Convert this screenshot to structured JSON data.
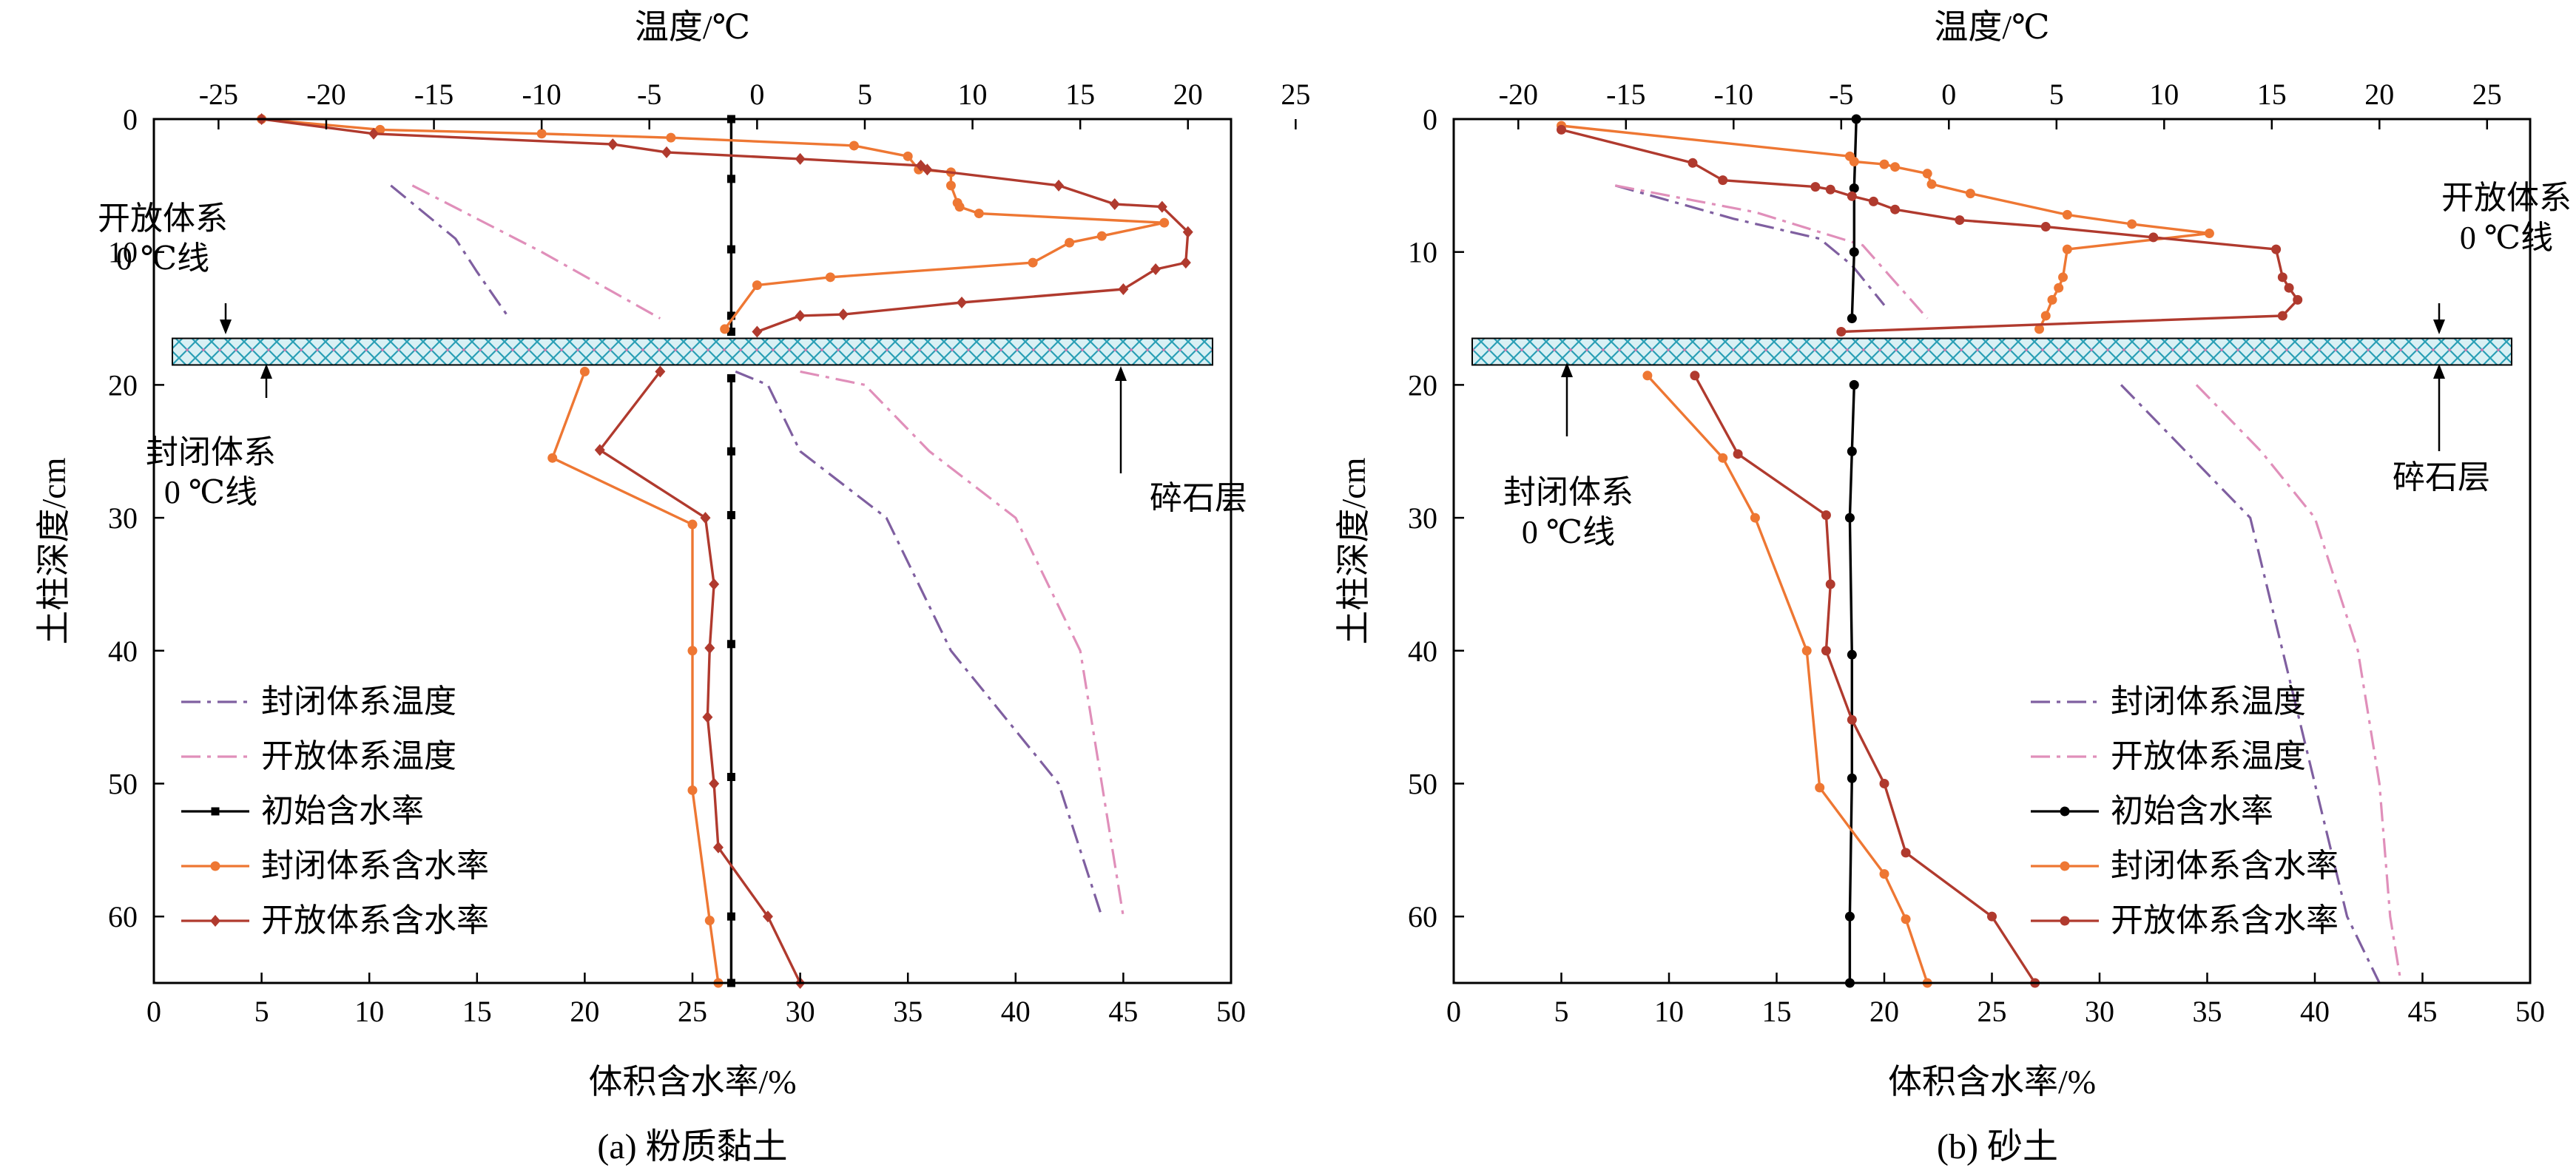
{
  "chart_data": [
    {
      "type": "line",
      "caption": "(a) 粉质黏土",
      "xlabel": "体积含水率/%",
      "x2label": "温度/℃",
      "ylabel": "土柱深度/cm",
      "xlim": [
        0,
        50
      ],
      "x2lim": [
        -28,
        22
      ],
      "ylim": [
        0,
        65
      ],
      "x_ticks": [
        0,
        5,
        10,
        15,
        20,
        25,
        30,
        35,
        40,
        45,
        50
      ],
      "x2_ticks": [
        -25,
        -20,
        -15,
        -10,
        -5,
        0,
        5,
        10,
        15,
        20,
        25
      ],
      "x2_tick_labels": [
        "-25",
        "-20",
        "-15",
        "-10",
        "-5",
        "0",
        "5",
        "10",
        "15",
        "20",
        "25"
      ],
      "y_ticks": [
        0,
        10,
        20,
        30,
        40,
        50,
        60
      ],
      "gravel_layer": {
        "label": "碎石层",
        "depth_range": [
          16.5,
          18.5
        ]
      },
      "annotations": [
        {
          "lines": [
            "开放体系",
            "0 ℃线"
          ]
        },
        {
          "lines": [
            "封闭体系",
            "0 ℃线"
          ]
        },
        {
          "lines": [
            "碎石层"
          ]
        }
      ],
      "legend": [
        {
          "label": "封闭体系温度",
          "series": 0
        },
        {
          "label": "开放体系温度",
          "series": 1
        },
        {
          "label": "初始含水率",
          "series": 2
        },
        {
          "label": "封闭体系含水率",
          "series": 3
        },
        {
          "label": "开放体系含水率",
          "series": 4
        }
      ],
      "series": [
        {
          "name": "封闭体系温度",
          "axis": "top",
          "style": "dashdot",
          "color": "#7f5fa0",
          "segments": [
            [
              [
                -17,
                5
              ],
              [
                -14,
                9
              ],
              [
                -13,
                11.5
              ],
              [
                -11.5,
                15
              ]
            ],
            [
              [
                -1,
                19
              ],
              [
                0.5,
                20
              ],
              [
                2,
                25
              ],
              [
                6,
                30
              ],
              [
                9,
                40
              ],
              [
                14,
                50
              ],
              [
                16,
                60
              ]
            ]
          ]
        },
        {
          "name": "开放体系温度",
          "axis": "top",
          "style": "dashdot",
          "color": "#e08fba",
          "segments": [
            [
              [
                -16,
                5
              ],
              [
                -10,
                10
              ],
              [
                -4.5,
                15
              ]
            ],
            [
              [
                2,
                19
              ],
              [
                5,
                20
              ],
              [
                8,
                25
              ],
              [
                12,
                30
              ],
              [
                15,
                40
              ],
              [
                16,
                50
              ],
              [
                17,
                60
              ]
            ]
          ]
        },
        {
          "name": "初始含水率",
          "axis": "bottom",
          "style": "solid",
          "color": "#000000",
          "marker": "square",
          "segments": [
            [
              [
                26.8,
                0
              ],
              [
                26.8,
                4.5
              ],
              [
                26.8,
                9.8
              ],
              [
                26.8,
                14.8
              ],
              [
                26.8,
                16
              ]
            ],
            [
              [
                26.8,
                19.5
              ],
              [
                26.8,
                25
              ],
              [
                26.8,
                29.8
              ],
              [
                26.8,
                39.5
              ],
              [
                26.8,
                49.5
              ],
              [
                26.8,
                60
              ],
              [
                26.8,
                65
              ]
            ]
          ]
        },
        {
          "name": "封闭体系含水率",
          "axis": "bottom",
          "style": "solid",
          "color": "#ee7733",
          "marker": "circle",
          "segments": [
            [
              [
                5,
                0
              ],
              [
                10.5,
                0.8
              ],
              [
                18,
                1.1
              ],
              [
                24,
                1.4
              ],
              [
                32.5,
                2.0
              ],
              [
                35,
                2.8
              ],
              [
                35.5,
                3.8
              ],
              [
                37,
                4.0
              ],
              [
                37,
                5.0
              ],
              [
                37.3,
                6.3
              ],
              [
                37.4,
                6.6
              ],
              [
                38.3,
                7.1
              ],
              [
                46.9,
                7.8
              ],
              [
                44,
                8.8
              ],
              [
                42.5,
                9.3
              ],
              [
                40.8,
                10.8
              ],
              [
                31.4,
                11.9
              ],
              [
                28,
                12.5
              ],
              [
                26.5,
                15.8
              ]
            ],
            [
              [
                20,
                19
              ],
              [
                18.5,
                25.5
              ],
              [
                25,
                30.5
              ],
              [
                25,
                40
              ],
              [
                25,
                50.5
              ],
              [
                25.8,
                60.3
              ],
              [
                26.2,
                65
              ]
            ]
          ]
        },
        {
          "name": "开放体系含水率",
          "axis": "bottom",
          "style": "solid",
          "color": "#b03a2e",
          "marker": "diamond",
          "segments": [
            [
              [
                5,
                0
              ],
              [
                10.2,
                1.1
              ],
              [
                21.3,
                1.9
              ],
              [
                23.8,
                2.5
              ],
              [
                30,
                3.0
              ],
              [
                35.6,
                3.5
              ],
              [
                35.9,
                3.8
              ],
              [
                42,
                5.0
              ],
              [
                44.6,
                6.4
              ],
              [
                46.8,
                6.6
              ],
              [
                48,
                8.5
              ],
              [
                47.9,
                10.8
              ],
              [
                46.5,
                11.3
              ],
              [
                45,
                12.8
              ],
              [
                37.5,
                13.8
              ],
              [
                32,
                14.7
              ],
              [
                30,
                14.8
              ],
              [
                28,
                16
              ]
            ],
            [
              [
                23.5,
                19
              ],
              [
                20.7,
                24.9
              ],
              [
                25.6,
                30
              ],
              [
                26,
                35
              ],
              [
                25.8,
                39.8
              ],
              [
                25.7,
                45
              ],
              [
                26,
                50
              ],
              [
                26.2,
                54.8
              ],
              [
                28.5,
                60
              ],
              [
                30,
                65
              ]
            ]
          ]
        }
      ]
    },
    {
      "type": "line",
      "caption": "(b) 砂土",
      "xlabel": "体积含水率/%",
      "x2label": "温度/℃",
      "ylabel": "土柱深度/cm",
      "xlim": [
        0,
        50
      ],
      "x2lim": [
        -23,
        27
      ],
      "ylim": [
        0,
        65
      ],
      "x_ticks": [
        0,
        5,
        10,
        15,
        20,
        25,
        30,
        35,
        40,
        45,
        50
      ],
      "x2_ticks": [
        -20,
        -15,
        -10,
        -5,
        0,
        5,
        10,
        15,
        20,
        25
      ],
      "x2_tick_labels": [
        "-20",
        "-15",
        "-10",
        "-5",
        "0",
        "5",
        "10",
        "15",
        "20",
        "25"
      ],
      "y_ticks": [
        0,
        10,
        20,
        30,
        40,
        50,
        60
      ],
      "gravel_layer": {
        "label": "碎石层",
        "depth_range": [
          16.5,
          18.5
        ]
      },
      "annotations": [
        {
          "lines": [
            "开放体系",
            "0 ℃线"
          ]
        },
        {
          "lines": [
            "封闭体系",
            "0 ℃线"
          ]
        },
        {
          "lines": [
            "碎石层"
          ]
        }
      ],
      "legend": [
        {
          "label": "封闭体系温度",
          "series": 0
        },
        {
          "label": "开放体系温度",
          "series": 1
        },
        {
          "label": "初始含水率",
          "series": 2
        },
        {
          "label": "封闭体系含水率",
          "series": 3
        },
        {
          "label": "开放体系含水率",
          "series": 4
        }
      ],
      "series": [
        {
          "name": "封闭体系温度",
          "axis": "top",
          "style": "dashdot",
          "color": "#7f5fa0",
          "segments": [
            [
              [
                -15.5,
                5
              ],
              [
                -10,
                7.5
              ],
              [
                -6,
                9
              ],
              [
                -4.5,
                11
              ],
              [
                -3,
                14
              ]
            ],
            [
              [
                8,
                20
              ],
              [
                11,
                25
              ],
              [
                14,
                30
              ],
              [
                15.5,
                40
              ],
              [
                17,
                50
              ],
              [
                18.5,
                60
              ],
              [
                20,
                65
              ]
            ]
          ]
        },
        {
          "name": "开放体系温度",
          "axis": "top",
          "style": "dashdot",
          "color": "#e08fba",
          "segments": [
            [
              [
                -15.5,
                5
              ],
              [
                -9,
                7
              ],
              [
                -4,
                9.5
              ],
              [
                -1,
                15
              ]
            ],
            [
              [
                11.5,
                20
              ],
              [
                14.5,
                25
              ],
              [
                17,
                30
              ],
              [
                19,
                40
              ],
              [
                20,
                50
              ],
              [
                20.5,
                60
              ],
              [
                21,
                65
              ]
            ]
          ]
        },
        {
          "name": "初始含水率",
          "axis": "bottom",
          "style": "solid",
          "color": "#000000",
          "marker": "circle",
          "segments": [
            [
              [
                18.7,
                0
              ],
              [
                18.6,
                5.2
              ],
              [
                18.6,
                10
              ],
              [
                18.5,
                15
              ]
            ],
            [
              [
                18.6,
                20
              ],
              [
                18.5,
                25
              ],
              [
                18.4,
                30
              ],
              [
                18.5,
                40.3
              ],
              [
                18.5,
                49.6
              ],
              [
                18.4,
                60
              ],
              [
                18.4,
                65
              ]
            ]
          ]
        },
        {
          "name": "封闭体系含水率",
          "axis": "bottom",
          "style": "solid",
          "color": "#ee7733",
          "marker": "circle",
          "segments": [
            [
              [
                5,
                0.5
              ],
              [
                18.4,
                2.8
              ],
              [
                18.6,
                3.2
              ],
              [
                20,
                3.4
              ],
              [
                20.5,
                3.6
              ],
              [
                22,
                4.1
              ],
              [
                22.2,
                4.9
              ],
              [
                24,
                5.6
              ],
              [
                28.5,
                7.2
              ],
              [
                31.5,
                7.9
              ],
              [
                35.1,
                8.6
              ],
              [
                28.5,
                9.8
              ],
              [
                28.3,
                11.9
              ],
              [
                28.1,
                12.7
              ],
              [
                27.8,
                13.6
              ],
              [
                27.5,
                14.8
              ],
              [
                27.2,
                15.8
              ]
            ],
            [
              [
                9,
                19.3
              ],
              [
                12.5,
                25.5
              ],
              [
                14,
                30
              ],
              [
                16.4,
                40
              ],
              [
                17,
                50.3
              ],
              [
                20,
                56.8
              ],
              [
                21,
                60.2
              ],
              [
                22,
                65
              ]
            ]
          ]
        },
        {
          "name": "开放体系含水率",
          "axis": "bottom",
          "style": "solid",
          "color": "#b03a2e",
          "marker": "circle",
          "segments": [
            [
              [
                5,
                0.8
              ],
              [
                11.1,
                3.3
              ],
              [
                12.5,
                4.6
              ],
              [
                16.8,
                5.1
              ],
              [
                17.5,
                5.3
              ],
              [
                18.5,
                5.8
              ],
              [
                19.5,
                6.2
              ],
              [
                20.5,
                6.8
              ],
              [
                23.5,
                7.6
              ],
              [
                27.5,
                8.1
              ],
              [
                32.5,
                8.9
              ],
              [
                38.2,
                9.8
              ],
              [
                38.5,
                11.9
              ],
              [
                38.8,
                12.7
              ],
              [
                39.2,
                13.6
              ],
              [
                38.5,
                14.8
              ],
              [
                18,
                16
              ]
            ],
            [
              [
                11.2,
                19.3
              ],
              [
                13.2,
                25.2
              ],
              [
                17.3,
                29.8
              ],
              [
                17.5,
                35
              ],
              [
                17.3,
                40
              ],
              [
                18.5,
                45.2
              ],
              [
                20,
                50
              ],
              [
                21,
                55.2
              ],
              [
                25,
                60
              ],
              [
                27,
                65
              ]
            ]
          ]
        }
      ]
    }
  ]
}
